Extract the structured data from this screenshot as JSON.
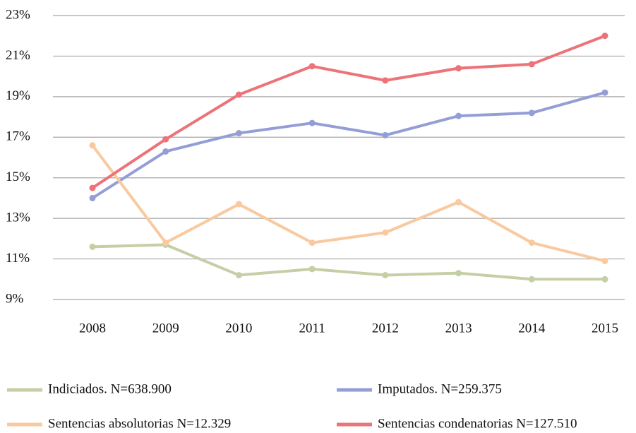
{
  "chart_data": {
    "type": "line",
    "categories": [
      "2008",
      "2009",
      "2010",
      "2011",
      "2012",
      "2013",
      "2014",
      "2015"
    ],
    "series": [
      {
        "name": "Indiciados. N=638.900",
        "color": "#c5cfa6",
        "values": [
          11.6,
          11.7,
          10.2,
          10.5,
          10.2,
          10.3,
          10.0,
          10.0
        ]
      },
      {
        "name": "Imputados. N=259.375",
        "color": "#949ed6",
        "values": [
          14.0,
          16.3,
          17.2,
          17.7,
          17.1,
          18.05,
          18.2,
          19.2
        ]
      },
      {
        "name": "Sentencias absolutorias N=12.329",
        "color": "#f9c9a0",
        "values": [
          16.6,
          11.8,
          13.7,
          11.8,
          12.3,
          13.8,
          11.8,
          10.9
        ]
      },
      {
        "name": "Sentencias condenatorias N=127.510",
        "color": "#ec7378",
        "values": [
          14.5,
          16.9,
          19.1,
          20.5,
          19.8,
          20.4,
          20.6,
          22.0
        ]
      }
    ],
    "ylim": [
      9,
      23
    ],
    "yticks": [
      {
        "value": 9,
        "label": "9%"
      },
      {
        "value": 11,
        "label": "11%"
      },
      {
        "value": 13,
        "label": "13%"
      },
      {
        "value": 15,
        "label": "15%"
      },
      {
        "value": 17,
        "label": "17%"
      },
      {
        "value": 19,
        "label": "19%"
      },
      {
        "value": 21,
        "label": "21%"
      },
      {
        "value": 23,
        "label": "23%"
      }
    ],
    "grid": true
  }
}
